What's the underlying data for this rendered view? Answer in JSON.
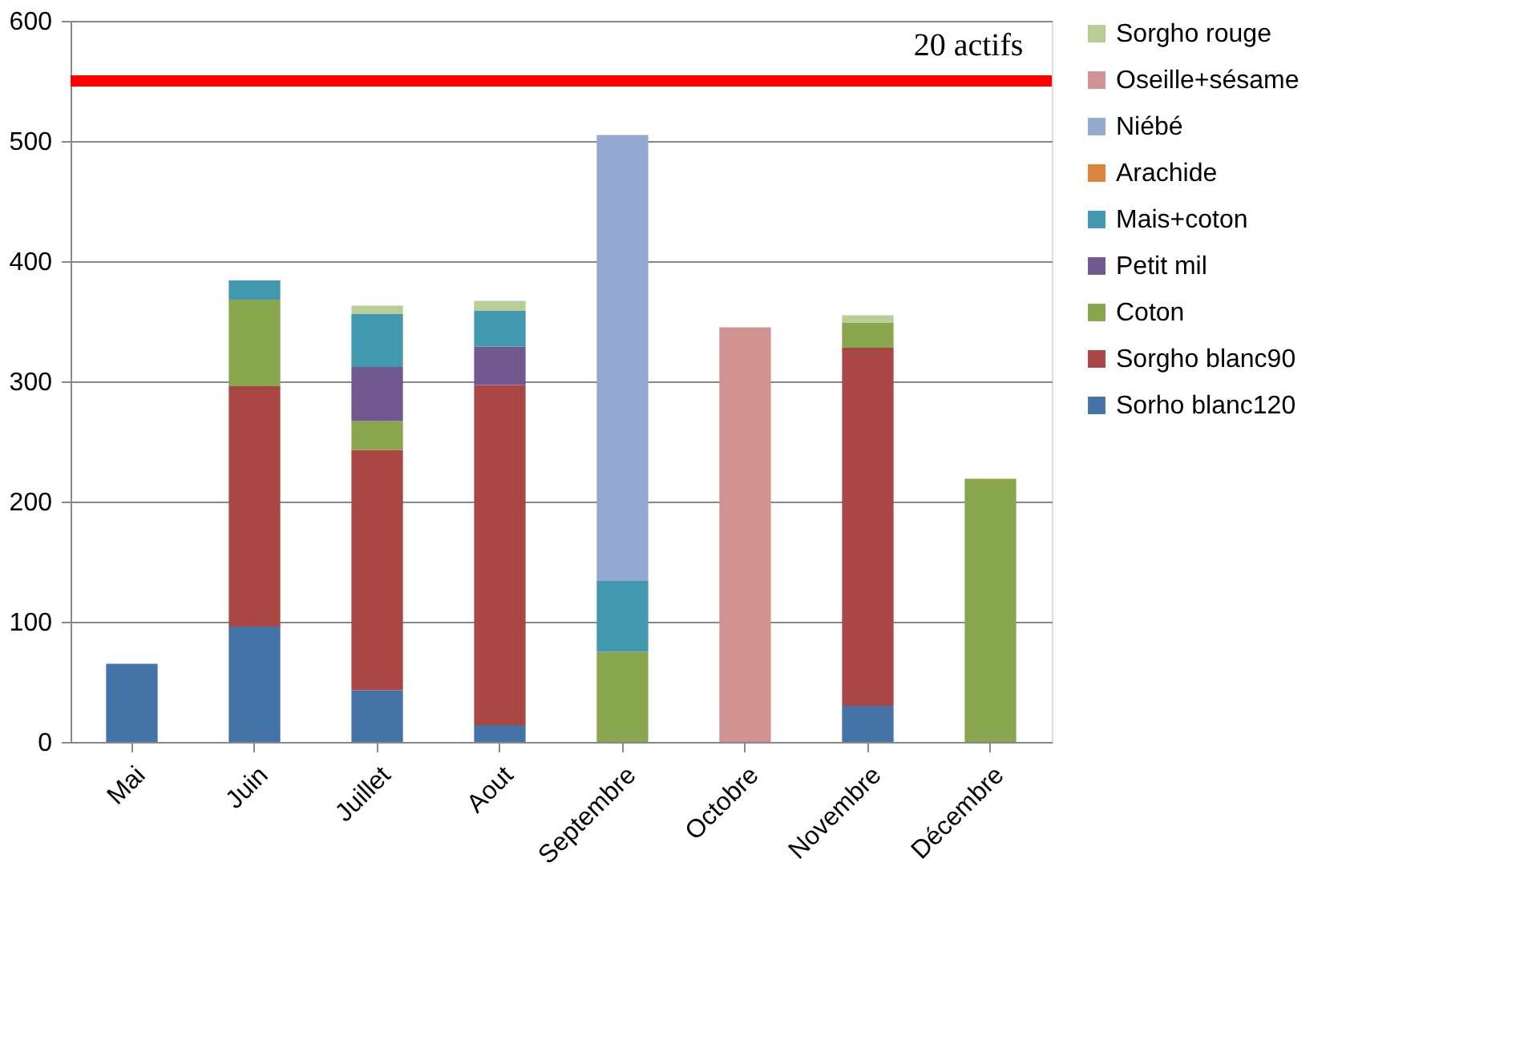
{
  "chart_data": {
    "type": "bar",
    "stacked": true,
    "categories": [
      "Mai",
      "Juin",
      "Juillet",
      "Aout",
      "Septembre",
      "Octobre",
      "Novembre",
      "Décembre"
    ],
    "series": [
      {
        "name": "Sorho blanc120",
        "color": "#4572a7",
        "values": [
          65,
          96,
          43,
          14,
          null,
          null,
          30,
          null
        ]
      },
      {
        "name": "Sorgho blanc90",
        "color": "#aa4643",
        "values": [
          null,
          200,
          200,
          283,
          null,
          null,
          298,
          null
        ]
      },
      {
        "name": "Coton",
        "color": "#89a54e",
        "values": [
          null,
          72,
          24,
          null,
          75,
          null,
          21,
          219
        ]
      },
      {
        "name": "Petit mil",
        "color": "#71588f",
        "values": [
          null,
          null,
          45,
          32,
          null,
          null,
          null,
          null
        ]
      },
      {
        "name": "Mais+coton",
        "color": "#4198af",
        "values": [
          null,
          16,
          44,
          30,
          59,
          null,
          null,
          null
        ]
      },
      {
        "name": "Arachide",
        "color": "#db843d",
        "values": [
          null,
          null,
          null,
          null,
          null,
          null,
          null,
          null
        ]
      },
      {
        "name": "Niébé",
        "color": "#93a9cf",
        "values": [
          null,
          null,
          null,
          null,
          371,
          null,
          null,
          null
        ]
      },
      {
        "name": "Oseille+sésame",
        "color": "#d19392",
        "values": [
          null,
          null,
          null,
          null,
          null,
          345,
          null,
          null
        ]
      },
      {
        "name": "Sorgho rouge",
        "color": "#b9cd96",
        "values": [
          null,
          null,
          7,
          8,
          null,
          null,
          6,
          null
        ]
      }
    ],
    "ylim": [
      0,
      600
    ],
    "yticks": [
      0,
      100,
      200,
      300,
      400,
      500,
      600
    ],
    "grid": "y",
    "legend": "right",
    "ref_lines": [
      {
        "axis": "y",
        "value": 550,
        "label": "20 actifs",
        "color": "#ff0000"
      }
    ]
  }
}
